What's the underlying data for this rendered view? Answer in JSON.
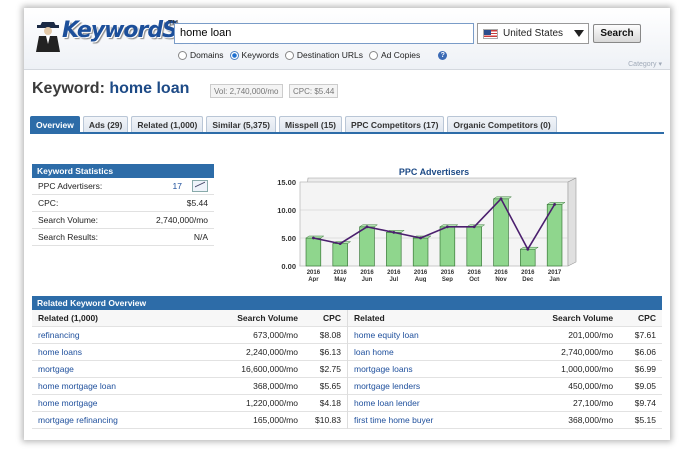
{
  "brand": {
    "name": "KeywordSpy",
    "tm": "TM"
  },
  "search": {
    "value": "home loan",
    "country": "United States",
    "button": "Search"
  },
  "search_types": [
    {
      "label": "Domains",
      "selected": false
    },
    {
      "label": "Keywords",
      "selected": true
    },
    {
      "label": "Destination URLs",
      "selected": false
    },
    {
      "label": "Ad Copies",
      "selected": false
    }
  ],
  "help_icon": "?",
  "category_label": "Category ▾",
  "heading": {
    "prefix": "Keyword:",
    "keyword": "home loan"
  },
  "metrics": {
    "vol_label": "Vol:",
    "vol_value": "2,740,000/mo",
    "cpc_label": "CPC:",
    "cpc_value": "$5.44"
  },
  "tabs": [
    {
      "label": "Overview",
      "active": true
    },
    {
      "label": "Ads (29)"
    },
    {
      "label": "Related (1,000)"
    },
    {
      "label": "Similar (5,375)"
    },
    {
      "label": "Misspell (15)"
    },
    {
      "label": "PPC Competitors (17)"
    },
    {
      "label": "Organic Competitors (0)"
    }
  ],
  "stats": {
    "title": "Keyword Statistics",
    "rows": [
      {
        "label": "PPC Advertisers:",
        "value": "17"
      },
      {
        "label": "CPC:",
        "value": "$5.44"
      },
      {
        "label": "Search Volume:",
        "value": "2,740,000/mo"
      },
      {
        "label": "Search Results:",
        "value": "N/A"
      }
    ]
  },
  "chart_data": {
    "type": "bar",
    "title": "PPC Advertisers",
    "categories": [
      [
        "2016",
        "Apr"
      ],
      [
        "2016",
        "May"
      ],
      [
        "2016",
        "Jun"
      ],
      [
        "2016",
        "Jul"
      ],
      [
        "2016",
        "Aug"
      ],
      [
        "2016",
        "Sep"
      ],
      [
        "2016",
        "Oct"
      ],
      [
        "2016",
        "Nov"
      ],
      [
        "2016",
        "Dec"
      ],
      [
        "2017",
        "Jan"
      ]
    ],
    "values": [
      5,
      4,
      7,
      6,
      5,
      7,
      7,
      12,
      3,
      11
    ],
    "line_overlay": true,
    "yticks": [
      "0.00",
      "5.00",
      "10.00",
      "15.00"
    ],
    "ylim": [
      0,
      15
    ],
    "colors": {
      "bar": "#8fd68d",
      "bar_edge": "#3a7a3a",
      "line": "#4b1f6e"
    }
  },
  "related": {
    "title": "Related Keyword Overview",
    "left": {
      "headers": [
        "Related (1,000)",
        "Search Volume",
        "CPC"
      ],
      "rows": [
        [
          "refinancing",
          "673,000/mo",
          "$8.08"
        ],
        [
          "home loans",
          "2,240,000/mo",
          "$6.13"
        ],
        [
          "mortgage",
          "16,600,000/mo",
          "$2.75"
        ],
        [
          "home mortgage loan",
          "368,000/mo",
          "$5.65"
        ],
        [
          "home mortgage",
          "1,220,000/mo",
          "$4.18"
        ],
        [
          "mortgage refinancing",
          "165,000/mo",
          "$10.83"
        ]
      ]
    },
    "right": {
      "headers": [
        "Related",
        "Search Volume",
        "CPC"
      ],
      "rows": [
        [
          "home equity loan",
          "201,000/mo",
          "$7.61"
        ],
        [
          "loan home",
          "2,740,000/mo",
          "$6.06"
        ],
        [
          "mortgage loans",
          "1,000,000/mo",
          "$6.99"
        ],
        [
          "mortgage lenders",
          "450,000/mo",
          "$9.05"
        ],
        [
          "home loan lender",
          "27,100/mo",
          "$9.74"
        ],
        [
          "first time home buyer",
          "368,000/mo",
          "$5.15"
        ]
      ]
    }
  }
}
